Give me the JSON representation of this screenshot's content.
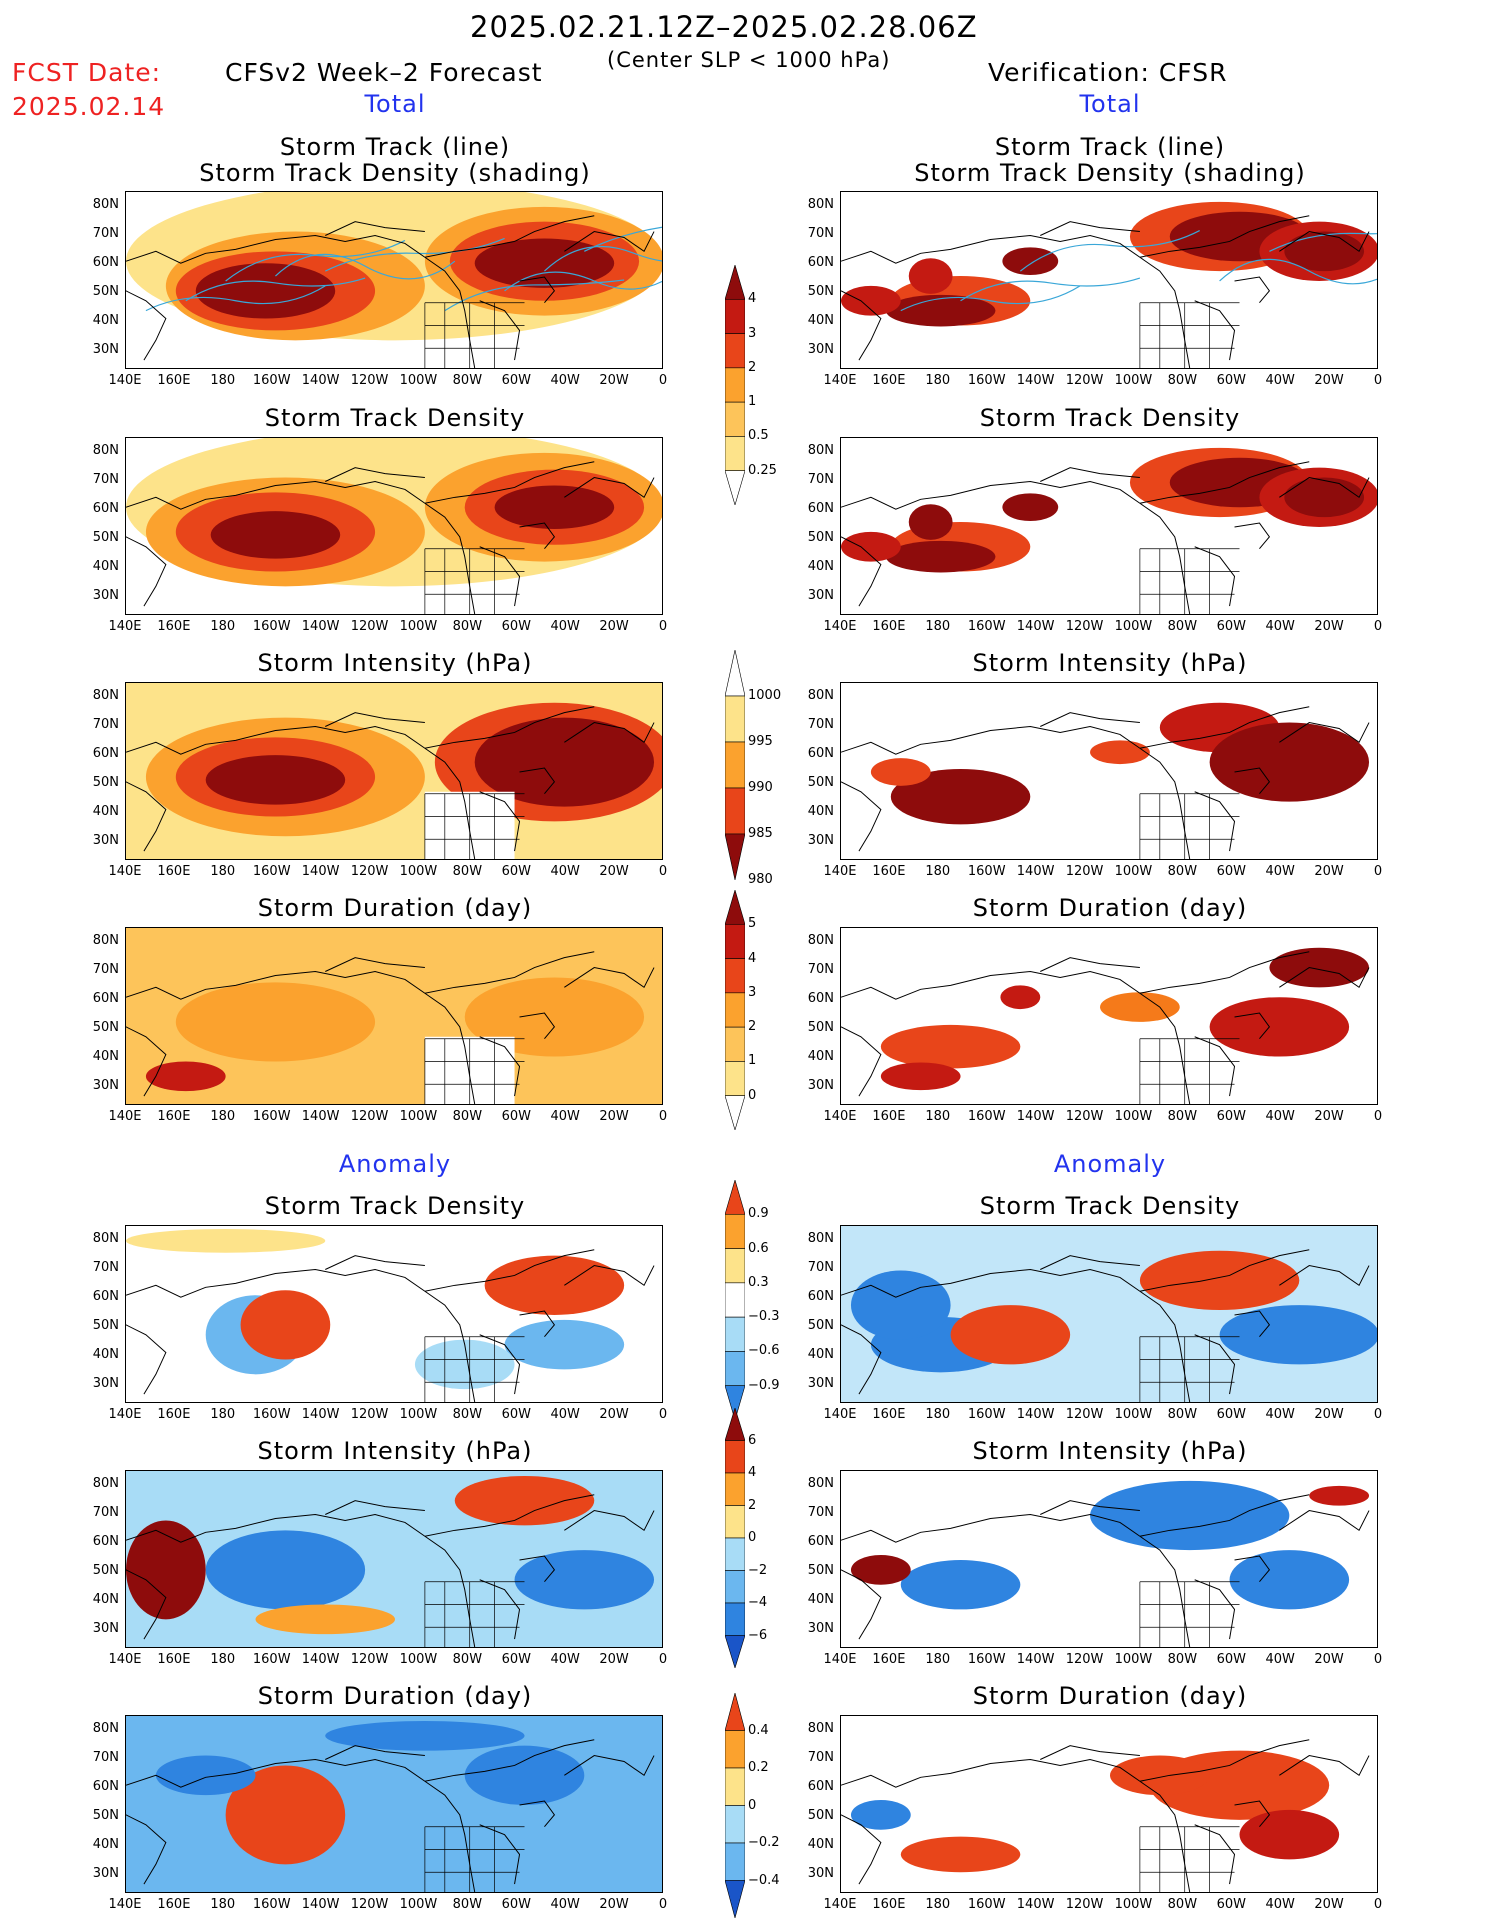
{
  "header": {
    "period": "2025.02.21.12Z–2025.02.28.06Z",
    "criterion": "(Center SLP < 1000 hPa)",
    "fcst_label": "FCST Date:",
    "fcst_date": "2025.02.14",
    "forecast_title": "CFSv2 Week–2 Forecast",
    "verification_title": "Verification: CFSR"
  },
  "sections": {
    "total": "Total",
    "anomaly": "Anomaly"
  },
  "panel_titles": {
    "track_line": "Storm Track (line)",
    "track_density_shading": "Storm Track Density (shading)",
    "track_density": "Storm Track Density",
    "intensity": "Storm Intensity (hPa)",
    "duration": "Storm Duration (day)"
  },
  "axes": {
    "lat_labels": [
      "80N",
      "70N",
      "60N",
      "50N",
      "40N",
      "30N"
    ],
    "lon_labels": [
      "140E",
      "160E",
      "180",
      "160W",
      "140W",
      "120W",
      "100W",
      "80W",
      "60W",
      "40W",
      "20W",
      "0"
    ]
  },
  "colorbars": {
    "total_density": [
      "4",
      "3",
      "2",
      "1",
      "0.5",
      "0.25"
    ],
    "total_intensity": [
      "1000",
      "995",
      "990",
      "985",
      "980"
    ],
    "total_duration": [
      "5",
      "4",
      "3",
      "2",
      "1",
      "0"
    ],
    "anom_density": [
      "0.9",
      "0.6",
      "0.3",
      "−0.3",
      "−0.6",
      "−0.9"
    ],
    "anom_intensity": [
      "6",
      "4",
      "2",
      "0",
      "−2",
      "−4",
      "−6"
    ],
    "anom_duration": [
      "0.4",
      "0.2",
      "0",
      "−0.2",
      "−0.4"
    ]
  },
  "colors": {
    "warm": [
      "#fff7b8",
      "#fde38a",
      "#fdc45a",
      "#fba22e",
      "#f57a1a",
      "#e8451a",
      "#c41a12",
      "#8e0c0c"
    ],
    "cool": [
      "#d6f4fb",
      "#a8dcf6",
      "#6bb7ef",
      "#2f84e0",
      "#1a55c8"
    ],
    "track_line": "#3aa7d8",
    "section_blue": "#2233ee",
    "fcst_red": "#ee2222"
  }
}
